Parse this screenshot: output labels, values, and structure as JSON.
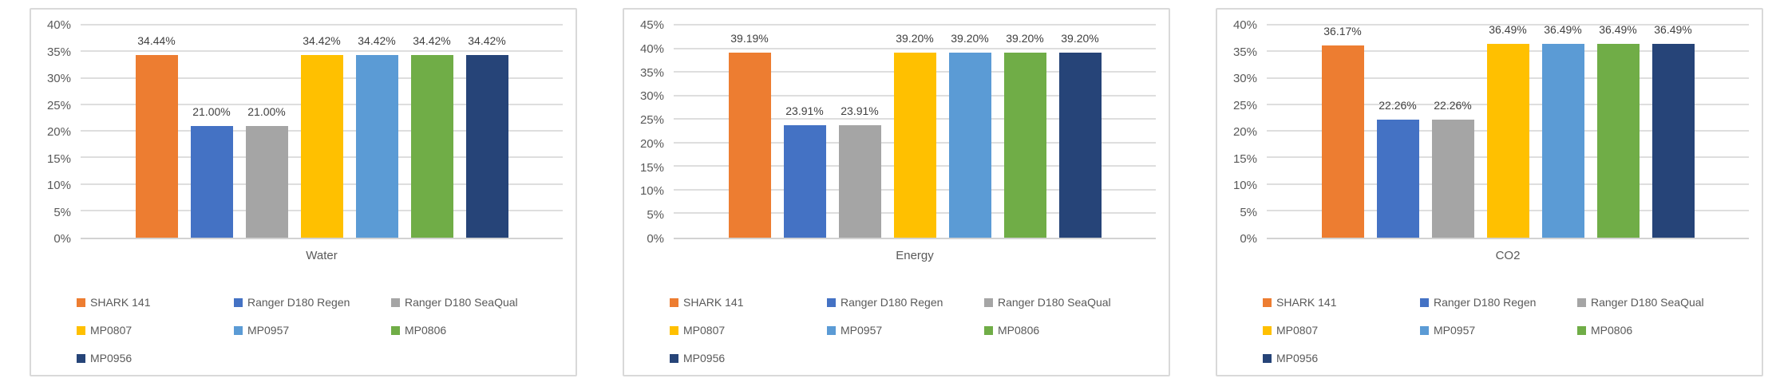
{
  "page": {
    "background": "#ffffff"
  },
  "palette": {
    "series_colors": [
      "#ED7D31",
      "#4472C4",
      "#A5A5A5",
      "#FFC000",
      "#5B9BD5",
      "#70AD47",
      "#264478"
    ],
    "gridline": "#DEDEDE",
    "axis_line": "#D2D2D2",
    "panel_border": "#D9D9D9",
    "tick_text": "#595959",
    "data_label_text": "#404040",
    "legend_text": "#595959"
  },
  "legend": {
    "position": "bottom",
    "columns": 3,
    "items": [
      "SHARK 141",
      "Ranger D180 Regen",
      "Ranger D180 SeaQual",
      "MP0807",
      "MP0957",
      "MP0806",
      "MP0956"
    ]
  },
  "chart_data": [
    {
      "type": "bar",
      "title": "",
      "xlabel": "Water",
      "ylabel": "",
      "ylim": [
        0,
        40
      ],
      "ytick_step": 5,
      "ytick_suffix": "%",
      "grid": true,
      "legend_position": "bottom",
      "series": [
        {
          "name": "SHARK 141",
          "value": 34.44,
          "label": "34.44%"
        },
        {
          "name": "Ranger D180 Regen",
          "value": 21.0,
          "label": "21.00%"
        },
        {
          "name": "Ranger D180 SeaQual",
          "value": 21.0,
          "label": "21.00%"
        },
        {
          "name": "MP0807",
          "value": 34.42,
          "label": "34.42%"
        },
        {
          "name": "MP0957",
          "value": 34.42,
          "label": "34.42%"
        },
        {
          "name": "MP0806",
          "value": 34.42,
          "label": "34.42%"
        },
        {
          "name": "MP0956",
          "value": 34.42,
          "label": "34.42%"
        }
      ]
    },
    {
      "type": "bar",
      "title": "",
      "xlabel": "Energy",
      "ylabel": "",
      "ylim": [
        0,
        45
      ],
      "ytick_step": 5,
      "ytick_suffix": "%",
      "grid": true,
      "legend_position": "bottom",
      "series": [
        {
          "name": "SHARK 141",
          "value": 39.19,
          "label": "39.19%"
        },
        {
          "name": "Ranger D180 Regen",
          "value": 23.91,
          "label": "23.91%"
        },
        {
          "name": "Ranger D180 SeaQual",
          "value": 23.91,
          "label": "23.91%"
        },
        {
          "name": "MP0807",
          "value": 39.2,
          "label": "39.20%"
        },
        {
          "name": "MP0957",
          "value": 39.2,
          "label": "39.20%"
        },
        {
          "name": "MP0806",
          "value": 39.2,
          "label": "39.20%"
        },
        {
          "name": "MP0956",
          "value": 39.2,
          "label": "39.20%"
        }
      ]
    },
    {
      "type": "bar",
      "title": "",
      "xlabel": "CO2",
      "ylabel": "",
      "ylim": [
        0,
        40
      ],
      "ytick_step": 5,
      "ytick_suffix": "%",
      "grid": true,
      "legend_position": "bottom",
      "series": [
        {
          "name": "SHARK 141",
          "value": 36.17,
          "label": "36.17%"
        },
        {
          "name": "Ranger D180 Regen",
          "value": 22.26,
          "label": "22.26%"
        },
        {
          "name": "Ranger D180 SeaQual",
          "value": 22.26,
          "label": "22.26%"
        },
        {
          "name": "MP0807",
          "value": 36.49,
          "label": "36.49%"
        },
        {
          "name": "MP0957",
          "value": 36.49,
          "label": "36.49%"
        },
        {
          "name": "MP0806",
          "value": 36.49,
          "label": "36.49%"
        },
        {
          "name": "MP0956",
          "value": 36.49,
          "label": "36.49%"
        }
      ]
    }
  ]
}
